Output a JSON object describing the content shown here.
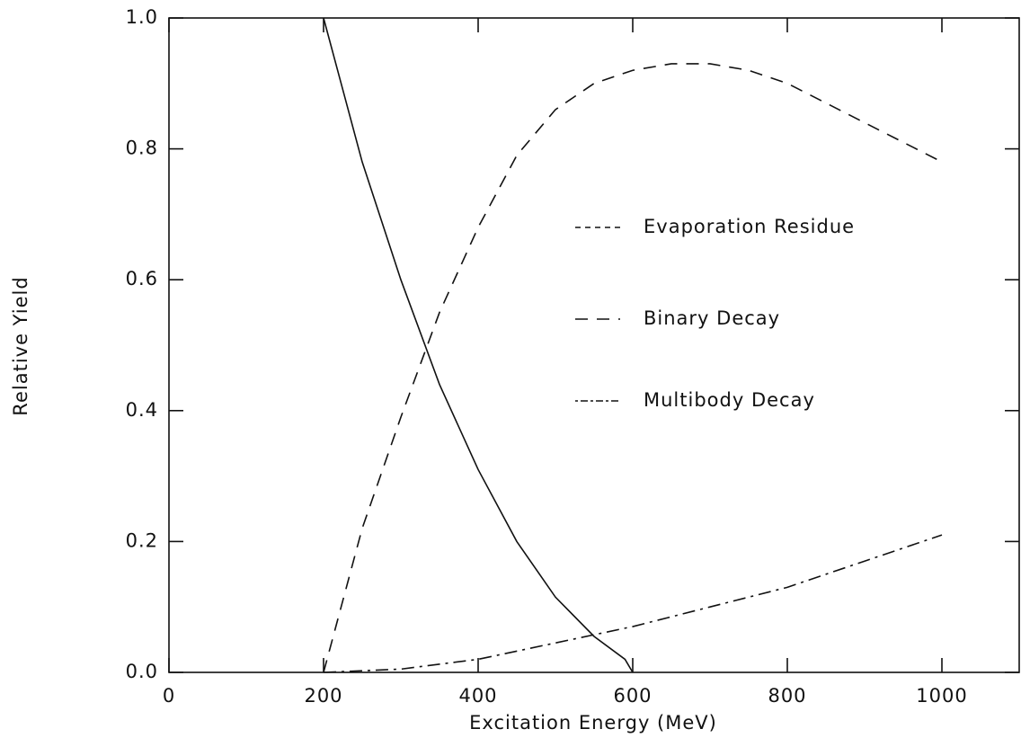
{
  "chart_data": {
    "type": "line",
    "xlabel": "Excitation Energy (MeV)",
    "ylabel": "Relative Yield",
    "xlim": [
      0,
      1100
    ],
    "ylim": [
      0,
      1.0
    ],
    "xticks": [
      0,
      200,
      400,
      600,
      800,
      1000
    ],
    "yticks": [
      {
        "value": 0,
        "label": "0.0"
      },
      0.2,
      0.4,
      0.6,
      0.8,
      {
        "value": 1.0,
        "label": "1.0"
      }
    ],
    "color": "#111111",
    "series": [
      {
        "name": "Evaporation Residue",
        "dash": "none",
        "legend_dash": "6 5",
        "x": [
          200,
          250,
          300,
          350,
          400,
          450,
          500,
          550,
          590,
          600
        ],
        "values": [
          1.0,
          0.78,
          0.6,
          0.44,
          0.31,
          0.2,
          0.115,
          0.055,
          0.02,
          0.0
        ]
      },
      {
        "name": "Binary Decay",
        "dash": "14 10",
        "legend_dash": "14 10",
        "x": [
          200,
          250,
          300,
          350,
          400,
          450,
          500,
          550,
          600,
          650,
          700,
          750,
          800,
          850,
          900,
          950,
          1000
        ],
        "values": [
          0.0,
          0.22,
          0.39,
          0.55,
          0.68,
          0.79,
          0.86,
          0.9,
          0.92,
          0.93,
          0.93,
          0.92,
          0.9,
          0.87,
          0.84,
          0.81,
          0.78
        ]
      },
      {
        "name": "Multibody Decay",
        "dash": "14 6 3 6",
        "legend_dash": "3 3 8 3",
        "x": [
          200,
          300,
          400,
          500,
          600,
          700,
          800,
          900,
          1000
        ],
        "values": [
          0.0,
          0.005,
          0.02,
          0.045,
          0.07,
          0.1,
          0.13,
          0.17,
          0.21
        ]
      }
    ]
  }
}
